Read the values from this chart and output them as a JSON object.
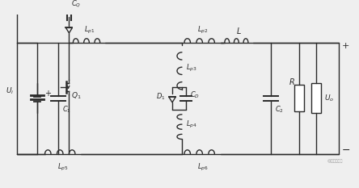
{
  "bg_color": "#efefef",
  "line_color": "#2a2a2a",
  "lw": 1.0,
  "figsize": [
    4.44,
    2.33
  ],
  "dpi": 100,
  "xlim": [
    0,
    44.4
  ],
  "ylim": [
    0,
    23.3
  ]
}
